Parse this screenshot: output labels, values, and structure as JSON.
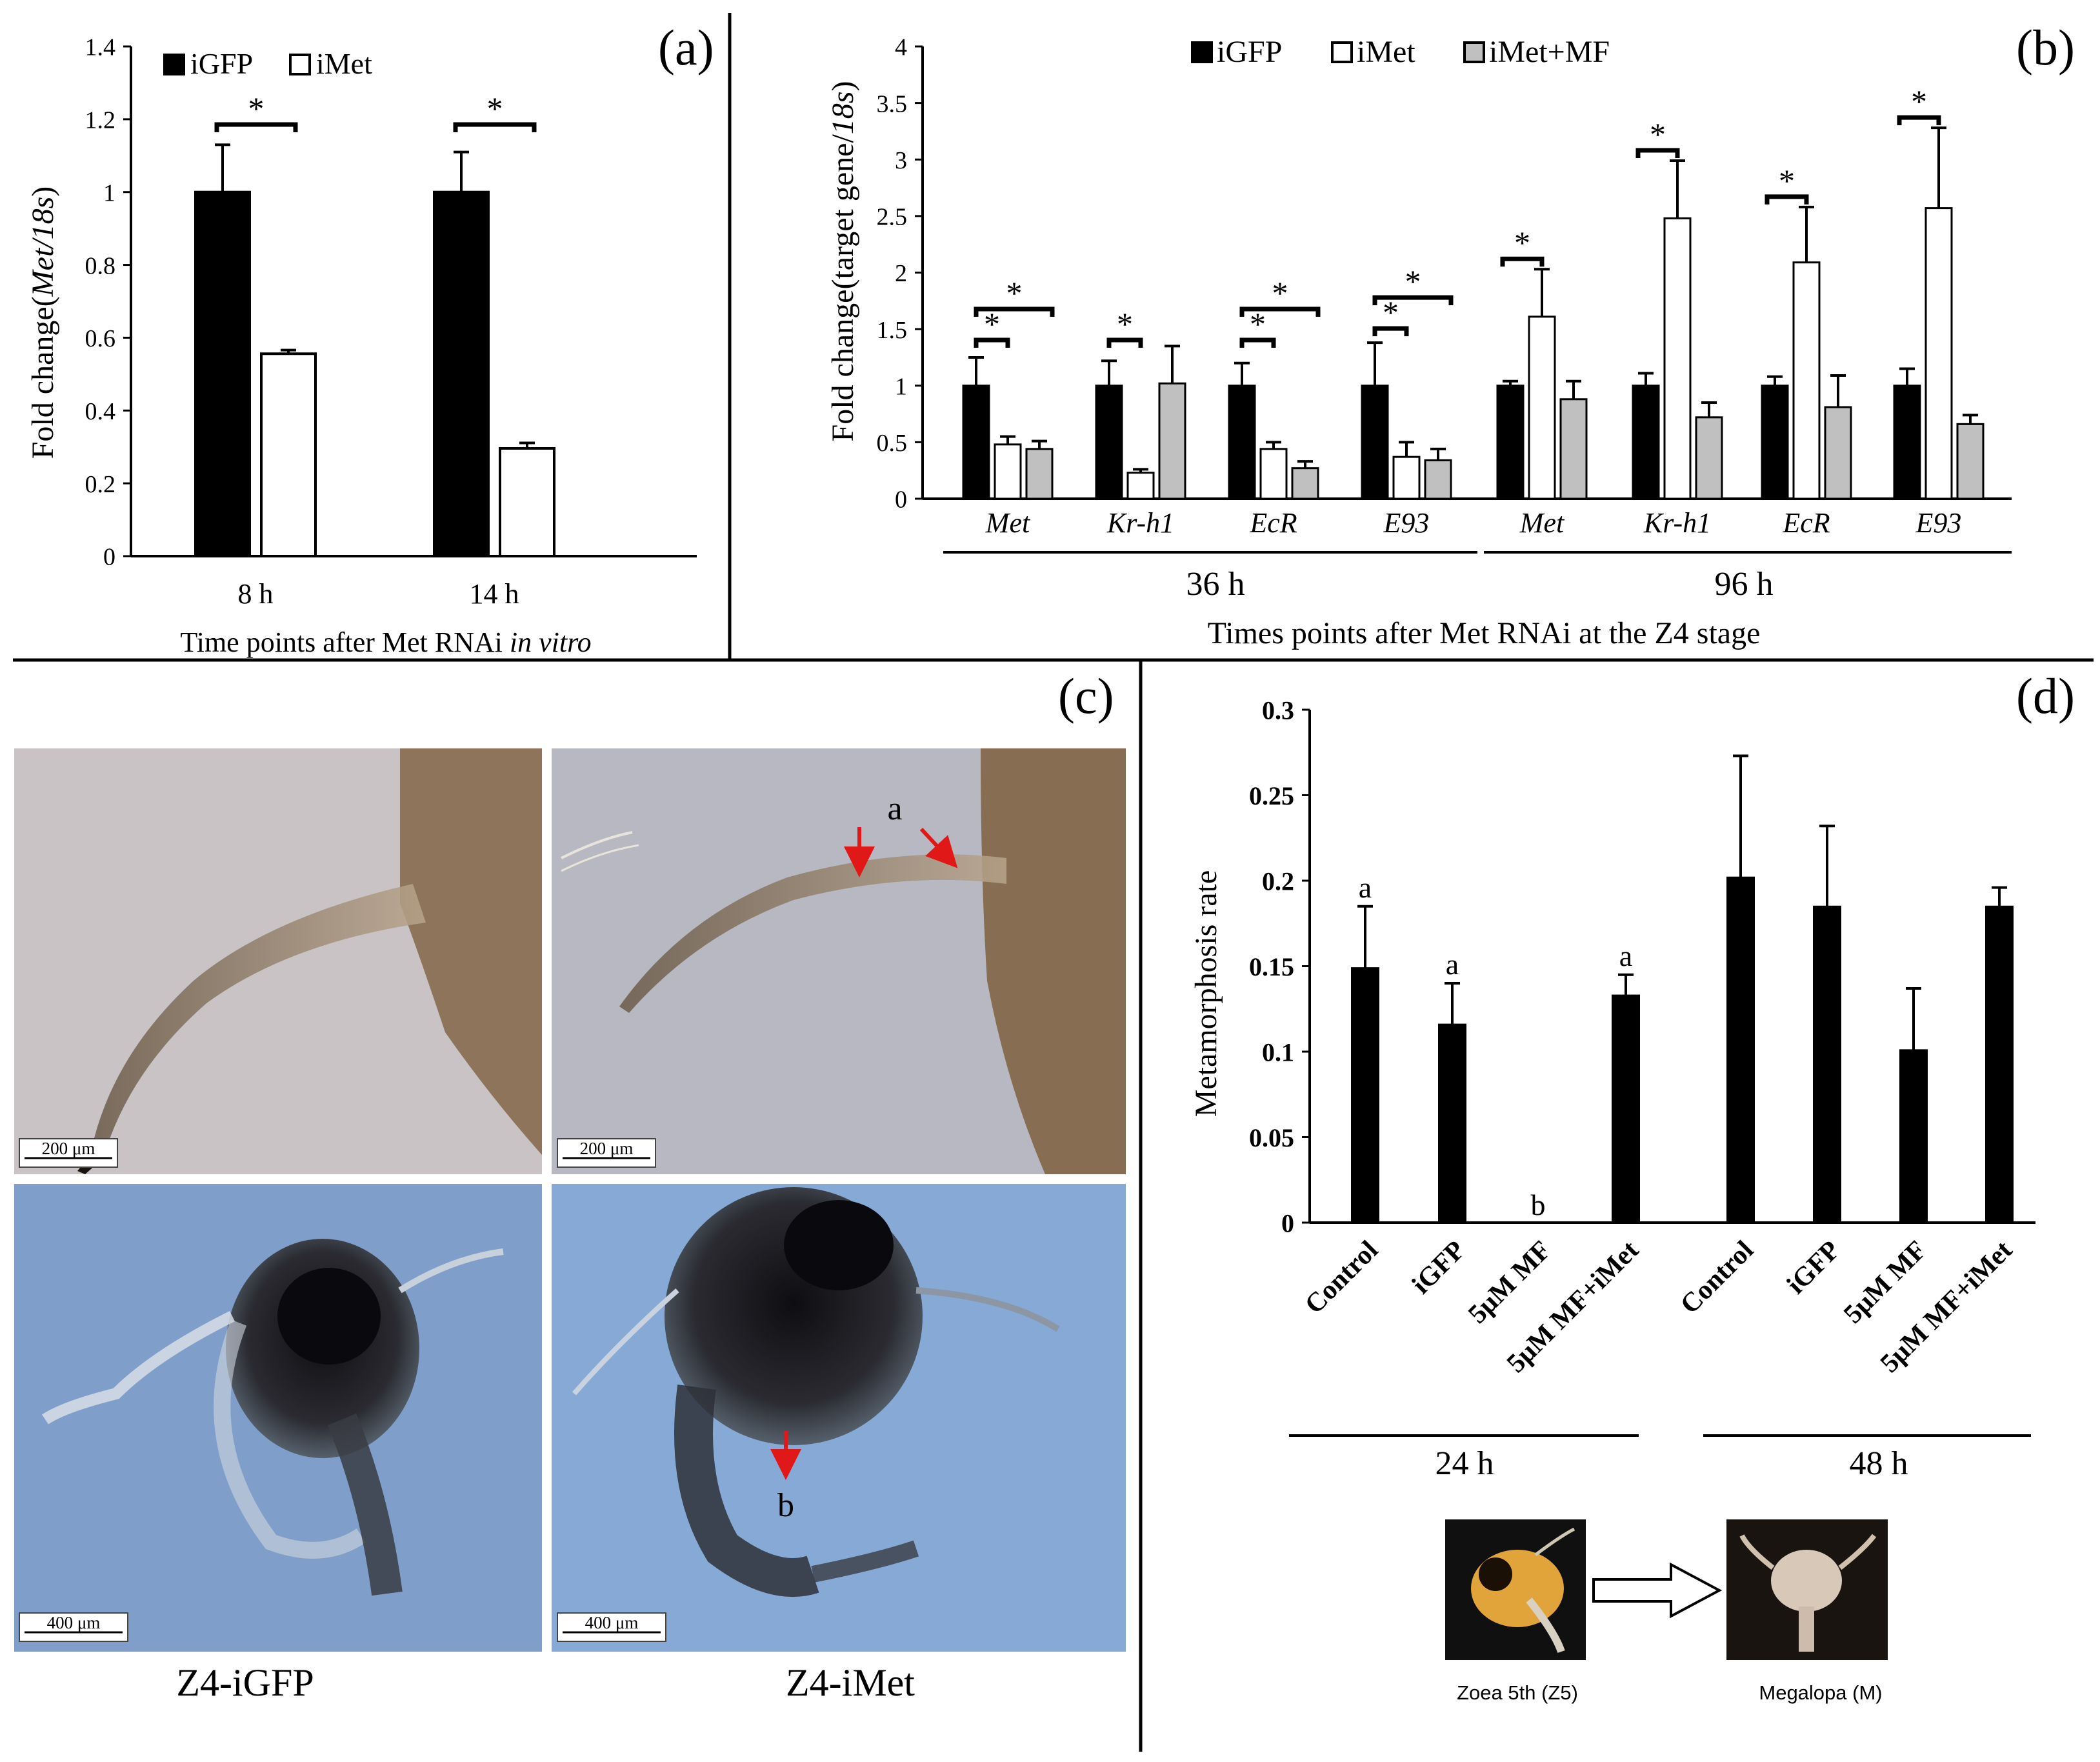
{
  "panels": {
    "a": {
      "tag": "(a)",
      "legend": [
        "iGFP",
        "iMet"
      ],
      "ylabel_prefix": "Fold change(",
      "ylabel_gene": "Met/18s",
      "ylabel_suffix": ")",
      "xlabel_prefix": "Time points after Met RNAi ",
      "xlabel_italic": "in vitro",
      "sig_marker": "*"
    },
    "b": {
      "tag": "(b)",
      "legend": [
        "iGFP",
        "iMet",
        "iMet+MF"
      ],
      "ylabel_prefix": "Fold change(target  gene/",
      "ylabel_italic": "18s",
      "ylabel_suffix": ")",
      "group_labels": [
        "36 h",
        "96 h"
      ],
      "xlabel": "Times points  after Met RNAi at the Z4 stage",
      "sig_marker": "*"
    },
    "c": {
      "tag": "(c)",
      "photo_labels": [
        "Z4-iGFP",
        "Z4-iMet"
      ],
      "scale_bars": [
        "200 μm",
        "200 μm",
        "400 μm",
        "400 μm"
      ],
      "annotations": [
        "a",
        "b"
      ]
    },
    "d": {
      "tag": "(d)",
      "ylabel": "Metamorphosis rate",
      "group_labels": [
        "24 h",
        "48 h"
      ],
      "stage_labels": [
        "Zoea 5th (Z5)",
        "Megalopa (M)"
      ]
    }
  },
  "colors": {
    "igfp": "#000000",
    "imet": "#ffffff",
    "imet_mf": "#c0c0c0",
    "arrow": "#e01818"
  },
  "chart_data": [
    {
      "panel": "a",
      "type": "bar",
      "categories": [
        "8 h",
        "14 h"
      ],
      "series": [
        {
          "name": "iGFP",
          "values": [
            1.0,
            1.0
          ],
          "errors": [
            0.13,
            0.11
          ]
        },
        {
          "name": "iMet",
          "values": [
            0.556,
            0.296
          ],
          "errors": [
            0.01,
            0.015
          ]
        }
      ],
      "significance": [
        "*",
        "*"
      ],
      "ylim": [
        0,
        1.4
      ],
      "yticks": [
        "0",
        "0.2",
        "0.4",
        "0.6",
        "0.8",
        "1",
        "1.2",
        "1.4"
      ],
      "ylabel": "Fold change(Met/18s)",
      "xlabel": "Time points after Met RNAi in vitro"
    },
    {
      "panel": "b",
      "type": "bar",
      "categories": [
        "Met",
        "Kr-h1",
        "EcR",
        "E93",
        "Met",
        "Kr-h1",
        "EcR",
        "E93"
      ],
      "series": [
        {
          "name": "iGFP",
          "values": [
            1,
            1,
            1,
            1,
            1,
            1,
            1,
            1
          ],
          "errors": [
            0.25,
            0.22,
            0.2,
            0.38,
            0.04,
            0.11,
            0.08,
            0.15
          ]
        },
        {
          "name": "iMet",
          "values": [
            0.48,
            0.23,
            0.44,
            0.37,
            1.61,
            2.48,
            2.09,
            2.57
          ],
          "errors": [
            0.07,
            0.03,
            0.06,
            0.13,
            0.42,
            0.51,
            0.49,
            0.71
          ]
        },
        {
          "name": "iMet+MF",
          "values": [
            0.44,
            1.02,
            0.27,
            0.34,
            0.88,
            0.72,
            0.81,
            0.66
          ],
          "errors": [
            0.07,
            0.33,
            0.06,
            0.1,
            0.16,
            0.13,
            0.28,
            0.08
          ]
        }
      ],
      "significance": [
        "*",
        "*",
        "*",
        "*",
        "*",
        "*",
        "*",
        "*",
        "*",
        "*",
        "*"
      ],
      "ylim": [
        0,
        4
      ],
      "yticks": [
        "0",
        "0.5",
        "1",
        "1.5",
        "2",
        "2.5",
        "3",
        "3.5",
        "4"
      ],
      "groups": [
        "36 h",
        "96 h"
      ],
      "ylabel": "Fold change(target gene/18s)",
      "xlabel": "Times points after Met RNAi at the Z4 stage"
    },
    {
      "panel": "d",
      "type": "bar",
      "categories": [
        "Control",
        "iGFP",
        "5μM MF",
        "5μM MF+iMet",
        "Control",
        "iGFP",
        "5μM MF",
        "5μM MF+iMet"
      ],
      "series": [
        {
          "name": "Metamorphosis rate",
          "values": [
            0.149,
            0.116,
            0.0,
            0.133,
            0.202,
            0.185,
            0.101,
            0.185
          ],
          "errors": [
            0.036,
            0.024,
            0.0,
            0.012,
            0.071,
            0.047,
            0.036,
            0.011
          ]
        }
      ],
      "letters": [
        "a",
        "a",
        "b",
        "a",
        "",
        "",
        "",
        ""
      ],
      "ylim": [
        0,
        0.3
      ],
      "yticks": [
        "0",
        "0.05",
        "0.1",
        "0.15",
        "0.2",
        "0.25",
        "0.3"
      ],
      "groups": [
        "24 h",
        "48 h"
      ],
      "ylabel": "Metamorphosis rate"
    }
  ]
}
